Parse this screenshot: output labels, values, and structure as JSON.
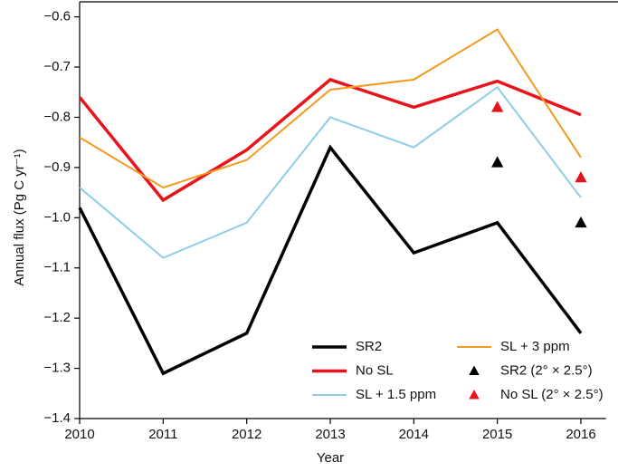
{
  "chart_data": {
    "type": "line",
    "x_label": "Year",
    "y_label": "Annual flux (Pg C yr⁻¹)",
    "x": [
      2010,
      2011,
      2012,
      2013,
      2014,
      2015,
      2016
    ],
    "xlim": [
      2010,
      2016.3
    ],
    "xticks": [
      2010,
      2011,
      2012,
      2013,
      2014,
      2015,
      2016
    ],
    "ylim": [
      -1.4,
      -0.57
    ],
    "yticks": [
      {
        "value": -1.4,
        "label": "−1.4"
      },
      {
        "value": -1.3,
        "label": "−1.3"
      },
      {
        "value": -1.2,
        "label": "−1.2"
      },
      {
        "value": -1.1,
        "label": "−1.1"
      },
      {
        "value": -1.0,
        "label": "−1.0"
      },
      {
        "value": -0.9,
        "label": "−0.9"
      },
      {
        "value": -0.8,
        "label": "−0.8"
      },
      {
        "value": -0.7,
        "label": "−0.7"
      },
      {
        "value": -0.6,
        "label": "−0.6"
      }
    ],
    "series": [
      {
        "name": "SR2",
        "type": "line",
        "color": "#000000",
        "width": 3.5,
        "values": [
          -0.98,
          -1.31,
          -1.23,
          -0.86,
          -1.07,
          -1.01,
          -1.23
        ]
      },
      {
        "name": "No SL",
        "type": "line",
        "color": "#e8141c",
        "width": 3.5,
        "values": [
          -0.76,
          -0.965,
          -0.865,
          -0.725,
          -0.78,
          -0.728,
          -0.795
        ]
      },
      {
        "name": "SL + 1.5 ppm",
        "type": "line",
        "color": "#8fcde6",
        "width": 2,
        "values": [
          -0.94,
          -1.08,
          -1.01,
          -0.8,
          -0.86,
          -0.74,
          -0.96
        ]
      },
      {
        "name": "SL + 3 ppm",
        "type": "line",
        "color": "#f29a1f",
        "width": 2,
        "values": [
          -0.84,
          -0.94,
          -0.885,
          -0.745,
          -0.725,
          -0.625,
          -0.88
        ]
      },
      {
        "name": "SR2 (2° × 2.5°)",
        "type": "scatter",
        "color": "#000000",
        "x": [
          2015,
          2016
        ],
        "values": [
          -0.89,
          -1.01
        ]
      },
      {
        "name": "No SL (2° × 2.5°)",
        "type": "scatter",
        "color": "#e8141c",
        "x": [
          2015,
          2016
        ],
        "values": [
          -0.78,
          -0.92
        ]
      }
    ]
  }
}
